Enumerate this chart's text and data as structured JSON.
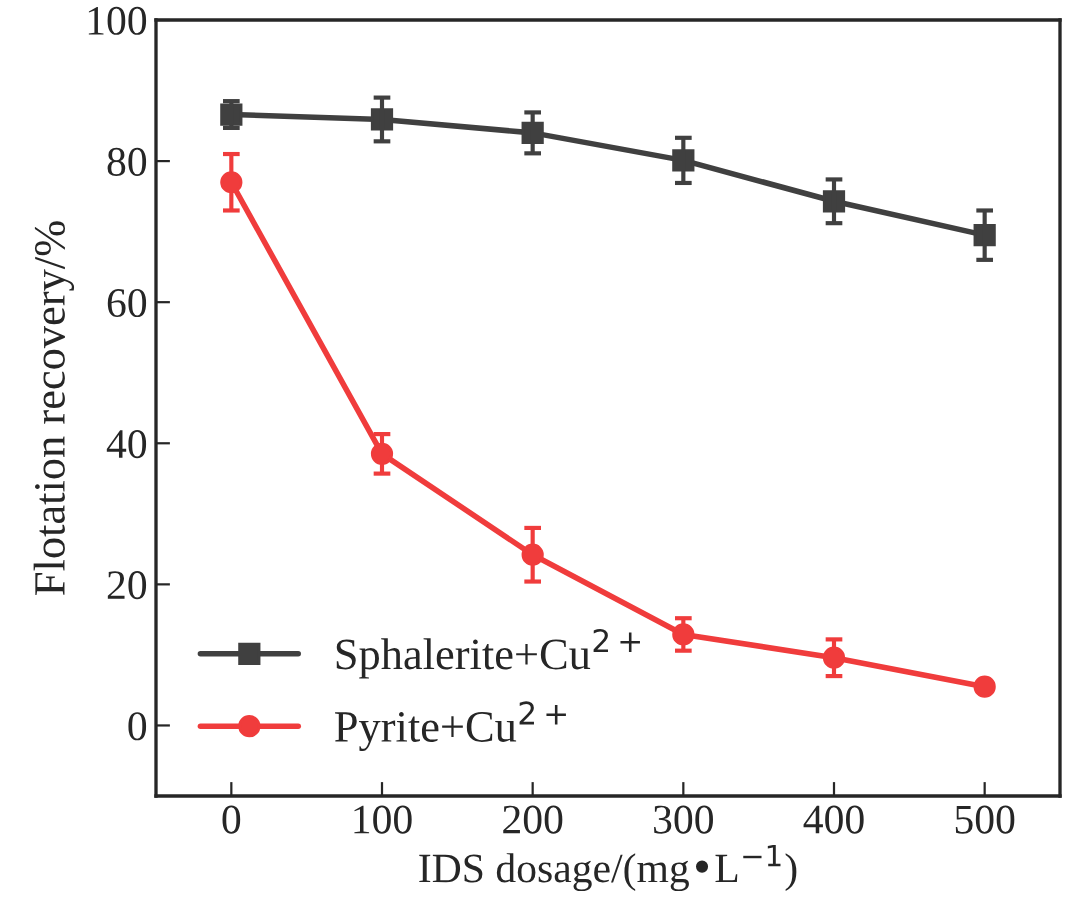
{
  "chart_data": {
    "type": "line",
    "xlabel": "IDS dosage/(mg•L$^{−1}$)",
    "ylabel": "Flotation recovery/%",
    "x": [
      0,
      100,
      200,
      300,
      400,
      500
    ],
    "series": [
      {
        "name": "Sphalerite+Cu$^{2+}$",
        "color": "#404040",
        "marker": "square",
        "values": [
          86.6,
          85.9,
          84.0,
          80.1,
          74.3,
          69.5
        ],
        "errors": [
          1.9,
          3.1,
          2.9,
          3.2,
          3.1,
          3.5
        ]
      },
      {
        "name": "Pyrite+Cu$^{2+}$",
        "color": "#f03c3c",
        "marker": "circle",
        "values": [
          77.0,
          38.5,
          24.2,
          12.9,
          9.6,
          5.5
        ],
        "errors": [
          4.0,
          2.8,
          3.8,
          2.3,
          2.6,
          null
        ]
      }
    ],
    "xlim": [
      -50,
      550
    ],
    "xticks": [
      0,
      100,
      200,
      300,
      400,
      500
    ],
    "ylim": [
      -10,
      100
    ],
    "yticks": [
      0,
      20,
      40,
      60,
      80,
      100
    ],
    "grid": false,
    "legend": "bottom left",
    "line_style": "solid"
  }
}
